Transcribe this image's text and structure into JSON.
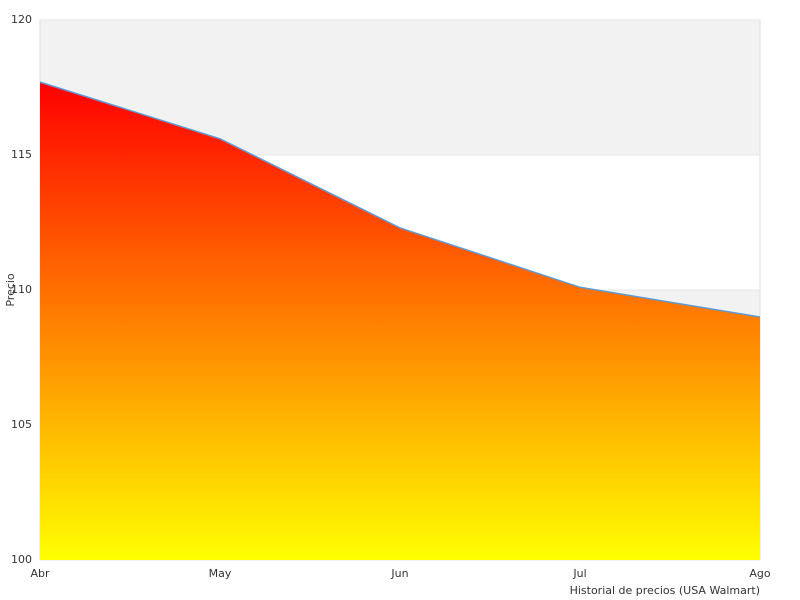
{
  "chart_data": {
    "type": "area",
    "categories": [
      "Abr",
      "May",
      "Jun",
      "Jul",
      "Ago"
    ],
    "values": [
      117.7,
      115.6,
      112.3,
      110.1,
      109.0
    ],
    "x_label": "Historial de precios (USA Walmart)",
    "y_label": "Precio",
    "ylim": [
      100,
      120
    ],
    "yticks": [
      100,
      105,
      110,
      115,
      120
    ],
    "grid": true,
    "band_color": "#f2f2f2",
    "gradient": [
      "#ff0000",
      "#ffff00"
    ],
    "line_color": "#5b9bd5"
  }
}
